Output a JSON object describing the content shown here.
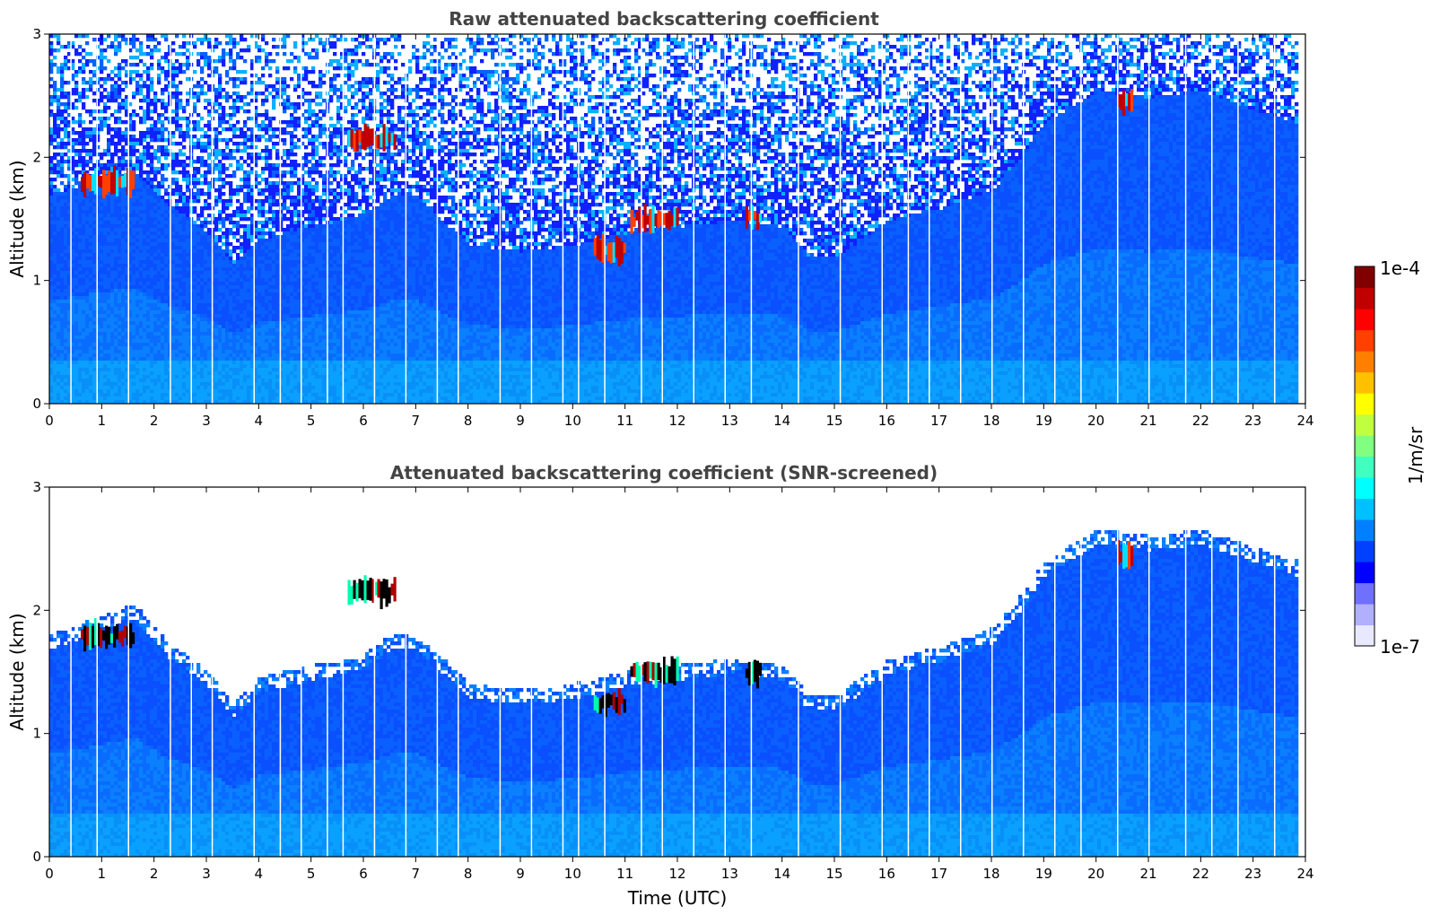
{
  "chart_data": [
    {
      "type": "heatmap",
      "title": "Raw attenuated backscattering coefficient",
      "xlabel": "",
      "ylabel": "Altitude (km)",
      "xlim": [
        0,
        24
      ],
      "ylim": [
        0,
        3
      ],
      "x_ticks": [
        "0",
        "1",
        "2",
        "3",
        "4",
        "5",
        "6",
        "7",
        "8",
        "9",
        "10",
        "11",
        "12",
        "13",
        "14",
        "15",
        "16",
        "17",
        "18",
        "19",
        "20",
        "21",
        "22",
        "23",
        "24"
      ],
      "y_ticks": [
        "0",
        "1",
        "2",
        "3"
      ],
      "screened": false,
      "colorbar": {
        "label": "1/m/sr",
        "min_label": "1e-7",
        "max_label": "1e-4",
        "scale": "log"
      },
      "features": [
        {
          "desc": "cloud layer",
          "time_start": 0.6,
          "time_end": 1.6,
          "altitude_km": 1.8,
          "intensity": "high"
        },
        {
          "desc": "elevated layer",
          "time_start": 5.7,
          "time_end": 6.6,
          "altitude_km": 2.15,
          "intensity": "high"
        },
        {
          "desc": "broken cloud",
          "time_start": 10.4,
          "time_end": 11.0,
          "altitude_km": 1.25,
          "intensity": "high"
        },
        {
          "desc": "broken cloud",
          "time_start": 11.1,
          "time_end": 12.0,
          "altitude_km": 1.5,
          "intensity": "high"
        },
        {
          "desc": "cloud patch",
          "time_start": 13.3,
          "time_end": 13.6,
          "altitude_km": 1.5,
          "intensity": "high"
        },
        {
          "desc": "elevated layer",
          "time_start": 20.4,
          "time_end": 20.7,
          "altitude_km": 2.45,
          "intensity": "high"
        }
      ],
      "boundary_layer_top_km": [
        [
          0,
          1.7
        ],
        [
          1,
          1.85
        ],
        [
          1.6,
          1.9
        ],
        [
          2.2,
          1.65
        ],
        [
          3,
          1.4
        ],
        [
          3.5,
          1.15
        ],
        [
          4,
          1.35
        ],
        [
          5,
          1.45
        ],
        [
          6,
          1.55
        ],
        [
          6.5,
          1.7
        ],
        [
          7,
          1.7
        ],
        [
          7.5,
          1.5
        ],
        [
          8,
          1.3
        ],
        [
          9,
          1.25
        ],
        [
          10,
          1.3
        ],
        [
          11,
          1.4
        ],
        [
          12,
          1.45
        ],
        [
          13,
          1.5
        ],
        [
          14,
          1.45
        ],
        [
          14.5,
          1.2
        ],
        [
          15,
          1.2
        ],
        [
          16,
          1.5
        ],
        [
          17,
          1.6
        ],
        [
          18,
          1.75
        ],
        [
          18.5,
          2.0
        ],
        [
          19,
          2.3
        ],
        [
          20,
          2.55
        ],
        [
          21,
          2.5
        ],
        [
          22,
          2.55
        ],
        [
          23,
          2.4
        ],
        [
          23.8,
          2.3
        ]
      ]
    },
    {
      "type": "heatmap",
      "title": "Attenuated backscattering coefficient (SNR-screened)",
      "xlabel": "Time (UTC)",
      "ylabel": "Altitude (km)",
      "xlim": [
        0,
        24
      ],
      "ylim": [
        0,
        3
      ],
      "x_ticks": [
        "0",
        "1",
        "2",
        "3",
        "4",
        "5",
        "6",
        "7",
        "8",
        "9",
        "10",
        "11",
        "12",
        "13",
        "14",
        "15",
        "16",
        "17",
        "18",
        "19",
        "20",
        "21",
        "22",
        "23",
        "24"
      ],
      "y_ticks": [
        "0",
        "1",
        "2",
        "3"
      ],
      "screened": true,
      "colorbar": {
        "label": "1/m/sr",
        "min_label": "1e-7",
        "max_label": "1e-4",
        "scale": "log"
      },
      "features": [
        {
          "desc": "cloud layer",
          "time_start": 0.6,
          "time_end": 1.6,
          "altitude_km": 1.8,
          "intensity": "saturated"
        },
        {
          "desc": "elevated layer",
          "time_start": 5.7,
          "time_end": 6.6,
          "altitude_km": 2.15,
          "intensity": "saturated"
        },
        {
          "desc": "broken cloud",
          "time_start": 10.4,
          "time_end": 11.0,
          "altitude_km": 1.25,
          "intensity": "saturated"
        },
        {
          "desc": "broken cloud",
          "time_start": 11.1,
          "time_end": 12.0,
          "altitude_km": 1.5,
          "intensity": "saturated"
        },
        {
          "desc": "cloud patch",
          "time_start": 13.3,
          "time_end": 13.6,
          "altitude_km": 1.5,
          "intensity": "saturated"
        },
        {
          "desc": "elevated layer",
          "time_start": 20.4,
          "time_end": 20.7,
          "altitude_km": 2.45,
          "intensity": "high"
        }
      ],
      "boundary_layer_top_km": [
        [
          0,
          1.7
        ],
        [
          1,
          1.85
        ],
        [
          1.6,
          1.95
        ],
        [
          2.2,
          1.65
        ],
        [
          3,
          1.4
        ],
        [
          3.5,
          1.15
        ],
        [
          4,
          1.35
        ],
        [
          5,
          1.45
        ],
        [
          6,
          1.55
        ],
        [
          6.5,
          1.7
        ],
        [
          7,
          1.7
        ],
        [
          7.5,
          1.5
        ],
        [
          8,
          1.3
        ],
        [
          9,
          1.25
        ],
        [
          10,
          1.3
        ],
        [
          11,
          1.4
        ],
        [
          12,
          1.45
        ],
        [
          13,
          1.5
        ],
        [
          14,
          1.45
        ],
        [
          14.5,
          1.2
        ],
        [
          15,
          1.2
        ],
        [
          16,
          1.5
        ],
        [
          17,
          1.6
        ],
        [
          18,
          1.75
        ],
        [
          18.5,
          2.0
        ],
        [
          19,
          2.3
        ],
        [
          20,
          2.55
        ],
        [
          21,
          2.5
        ],
        [
          22,
          2.55
        ],
        [
          23,
          2.4
        ],
        [
          23.8,
          2.3
        ]
      ]
    }
  ],
  "colorbar": {
    "label": "1/m/sr",
    "max_label": "1e-4",
    "min_label": "1e-7",
    "colors": [
      "#e8e8ff",
      "#b0b0ff",
      "#7070ff",
      "#0000ff",
      "#0040ff",
      "#0080ff",
      "#00c0ff",
      "#00ffff",
      "#40ffbf",
      "#80ff80",
      "#c0ff40",
      "#ffff00",
      "#ffc000",
      "#ff8000",
      "#ff4000",
      "#ff0000",
      "#c00000",
      "#800000"
    ]
  }
}
